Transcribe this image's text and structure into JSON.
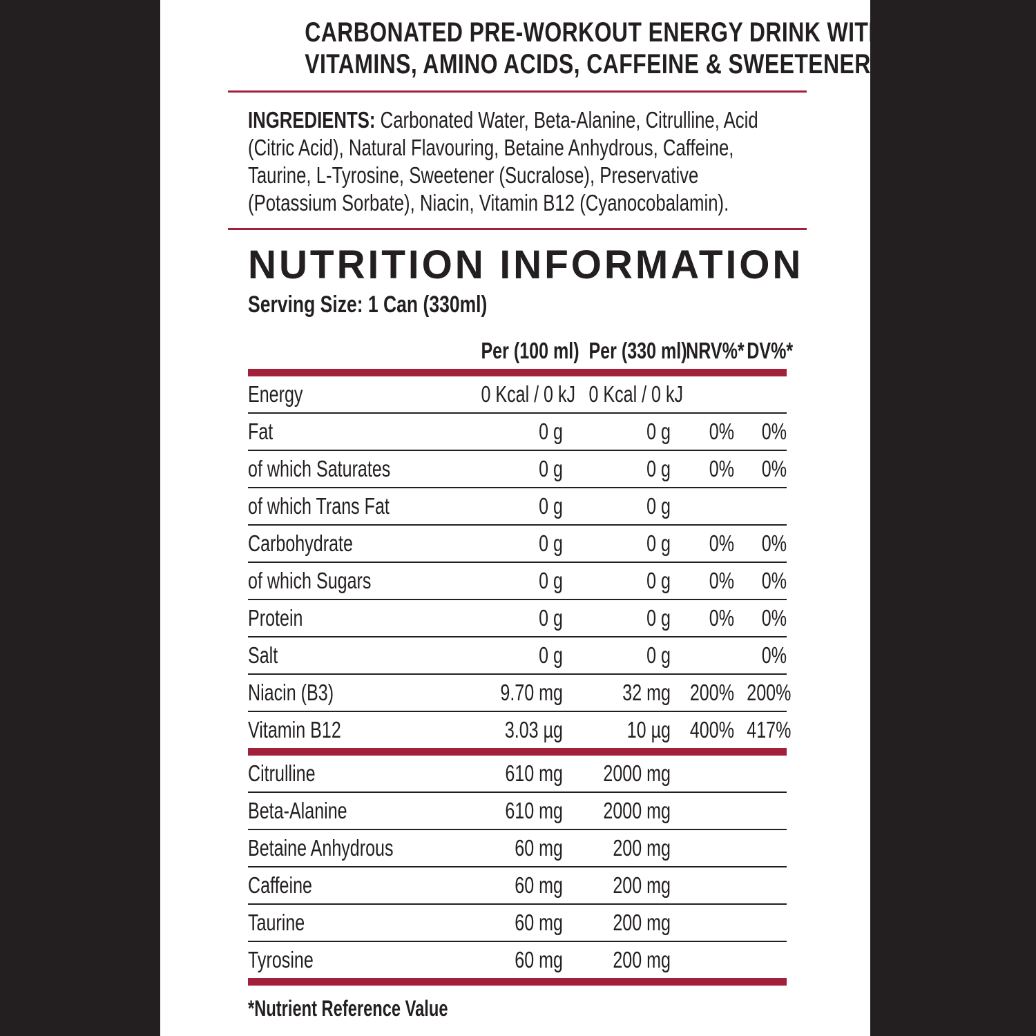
{
  "header": {
    "line1": "CARBONATED PRE-WORKOUT ENERGY DRINK WITH",
    "line2": "VITAMINS, AMINO ACIDS, CAFFEINE & SWEETENER"
  },
  "ingredients": {
    "label": "INGREDIENTS:",
    "text": " Carbonated Water, Beta-Alanine, Citrulline, Acid (Citric Acid), Natural Flavouring, Betaine Anhydrous, Caffeine, Taurine, L-Tyrosine, Sweetener (Sucralose), Preservative (Potassium Sorbate), Niacin, Vitamin B12 (Cyanocobalamin)."
  },
  "nutrition": {
    "title": "NUTRITION INFORMATION",
    "serving": "Serving Size: 1 Can (330ml)",
    "columns": [
      "Per (100 ml)",
      "Per (330 ml)",
      "NRV%*",
      "DV%*"
    ],
    "rows": [
      {
        "name": "Energy",
        "per100": "0 Kcal / 0 kJ",
        "per330": "0 Kcal / 0 kJ",
        "nrv": "",
        "dv": "",
        "indent": false
      },
      {
        "name": "Fat",
        "per100": "0 g",
        "per330": "0 g",
        "nrv": "0%",
        "dv": "0%",
        "indent": false
      },
      {
        "name": "of which Saturates",
        "per100": "0 g",
        "per330": "0 g",
        "nrv": "0%",
        "dv": "0%",
        "indent": true
      },
      {
        "name": "of which Trans Fat",
        "per100": "0 g",
        "per330": "0 g",
        "nrv": "",
        "dv": "",
        "indent": true
      },
      {
        "name": "Carbohydrate",
        "per100": "0 g",
        "per330": "0 g",
        "nrv": "0%",
        "dv": "0%",
        "indent": false
      },
      {
        "name": "of which Sugars",
        "per100": "0 g",
        "per330": "0 g",
        "nrv": "0%",
        "dv": "0%",
        "indent": true
      },
      {
        "name": "Protein",
        "per100": "0 g",
        "per330": "0 g",
        "nrv": "0%",
        "dv": "0%",
        "indent": false
      },
      {
        "name": "Salt",
        "per100": "0 g",
        "per330": "0 g",
        "nrv": "",
        "dv": "0%",
        "indent": false
      },
      {
        "name": "Niacin (B3)",
        "per100": "9.70 mg",
        "per330": "32 mg",
        "nrv": "200%",
        "dv": "200%",
        "indent": false
      },
      {
        "name": "Vitamin B12",
        "per100": "3.03 µg",
        "per330": "10 µg",
        "nrv": "400%",
        "dv": "417%",
        "indent": false
      }
    ],
    "actives": [
      {
        "name": "Citrulline",
        "per100": "610 mg",
        "per330": "2000 mg"
      },
      {
        "name": "Beta-Alanine",
        "per100": "610 mg",
        "per330": "2000 mg"
      },
      {
        "name": "Betaine Anhydrous",
        "per100": "60 mg",
        "per330": "200 mg"
      },
      {
        "name": "Caffeine",
        "per100": "60 mg",
        "per330": "200 mg"
      },
      {
        "name": "Taurine",
        "per100": "60 mg",
        "per330": "200 mg"
      },
      {
        "name": "Tyrosine",
        "per100": "60 mg",
        "per330": "200 mg"
      }
    ],
    "footnote": "*Nutrient Reference Value"
  },
  "colors": {
    "accent": "#a3203a",
    "text": "#231f20",
    "background": "#231f20"
  }
}
